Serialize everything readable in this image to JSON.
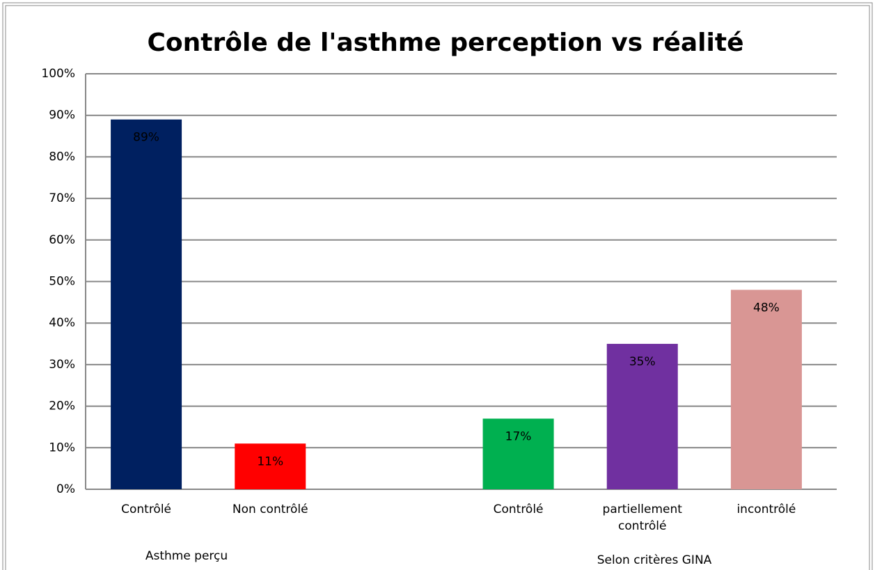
{
  "chart_data": {
    "type": "bar",
    "title": "Contrôle de l'asthme perception vs réalité",
    "categories": [
      "Contrôlé",
      "Non contrôlé",
      null,
      "Contrôlé",
      "partiellement contrôlé",
      "incontrôlé"
    ],
    "values": [
      89,
      11,
      null,
      17,
      35,
      48
    ],
    "value_labels": [
      "89%",
      "11%",
      null,
      "17%",
      "35%",
      "48%"
    ],
    "colors": [
      "#002060",
      "#ff0000",
      null,
      "#00b050",
      "#7030a0",
      "#d99694"
    ],
    "groups": [
      "Asthme perçu",
      "Selon critères GINA"
    ],
    "ylim": [
      0,
      100
    ],
    "yticks": [
      {
        "value": 0,
        "label": "0%"
      },
      {
        "value": 10,
        "label": "10%"
      },
      {
        "value": 20,
        "label": "20%"
      },
      {
        "value": 30,
        "label": "30%"
      },
      {
        "value": 40,
        "label": "40%"
      },
      {
        "value": 50,
        "label": "50%"
      },
      {
        "value": 60,
        "label": "60%"
      },
      {
        "value": 70,
        "label": "70%"
      },
      {
        "value": 80,
        "label": "80%"
      },
      {
        "value": 90,
        "label": "90%"
      },
      {
        "value": 100,
        "label": "100%"
      }
    ],
    "grid": true
  }
}
